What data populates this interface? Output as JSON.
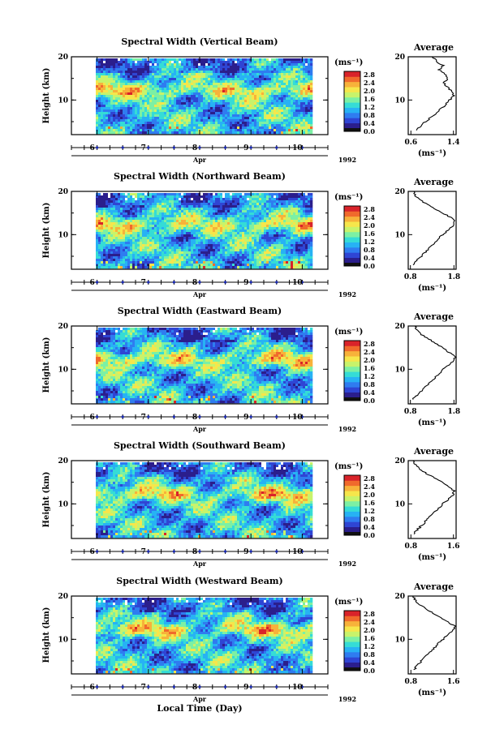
{
  "figure": {
    "xlabel": "Local Time (Day)",
    "month_label": "Apr",
    "year_label": "1992",
    "ylabel": "Height (km)",
    "unit_label": "(ms⁻¹)",
    "profile_title": "Average",
    "colors": {
      "colormap": [
        "#2b1e8c",
        "#2f45d4",
        "#2f7cf0",
        "#27b2f4",
        "#35dcd6",
        "#7cf0a4",
        "#c8f36b",
        "#f6e64b",
        "#f7b23a",
        "#f06a2c",
        "#d9232a"
      ],
      "gap": "#ffffff",
      "nav_marker": "#1c2bb4"
    }
  },
  "chart_data": [
    {
      "type": "heatmap",
      "title": "Spectral Width (Vertical Beam)",
      "x_ticks": [
        "6",
        "7",
        "8",
        "9",
        "10"
      ],
      "y_ticks": [
        "20",
        "10"
      ],
      "xlim": [
        5.5,
        10.5
      ],
      "ylim": [
        2,
        20
      ],
      "colorbar": {
        "ticks": [
          "2.8",
          "2.4",
          "2.0",
          "1.6",
          "1.2",
          "0.8",
          "0.4",
          "0.0"
        ],
        "range": [
          0.0,
          3.0
        ]
      },
      "profile": {
        "x_ticks": [
          "0.6",
          "1.4"
        ],
        "xlim": [
          0.55,
          1.45
        ],
        "heights": [
          3,
          4,
          5,
          6,
          7,
          8,
          9,
          10,
          11,
          12,
          13,
          14,
          15,
          16,
          17,
          18,
          19,
          20
        ],
        "values": [
          0.68,
          0.78,
          0.88,
          0.98,
          1.08,
          1.17,
          1.26,
          1.33,
          1.4,
          1.36,
          1.28,
          1.22,
          1.3,
          1.24,
          1.14,
          1.2,
          1.08,
          1.0
        ]
      }
    },
    {
      "type": "heatmap",
      "title": "Spectral Width (Northward Beam)",
      "x_ticks": [
        "6",
        "7",
        "8",
        "9",
        "10"
      ],
      "y_ticks": [
        "20",
        "10"
      ],
      "xlim": [
        5.5,
        10.5
      ],
      "ylim": [
        2,
        20
      ],
      "colorbar": {
        "ticks": [
          "2.8",
          "2.4",
          "2.0",
          "1.6",
          "1.2",
          "0.8",
          "0.4",
          "0.0"
        ],
        "range": [
          0.0,
          3.0
        ]
      },
      "profile": {
        "x_ticks": [
          "0.8",
          "1.8"
        ],
        "xlim": [
          0.75,
          1.85
        ],
        "heights": [
          3,
          4,
          5,
          6,
          7,
          8,
          9,
          10,
          11,
          12,
          13,
          14,
          15,
          16,
          17,
          18,
          19,
          20
        ],
        "values": [
          0.85,
          0.95,
          1.05,
          1.15,
          1.24,
          1.34,
          1.44,
          1.54,
          1.66,
          1.78,
          1.82,
          1.72,
          1.55,
          1.35,
          1.18,
          1.02,
          0.92,
          0.88
        ]
      }
    },
    {
      "type": "heatmap",
      "title": "Spectral Width (Eastward Beam)",
      "x_ticks": [
        "6",
        "7",
        "8",
        "9",
        "10"
      ],
      "y_ticks": [
        "20",
        "10"
      ],
      "xlim": [
        5.5,
        10.5
      ],
      "ylim": [
        2,
        20
      ],
      "colorbar": {
        "ticks": [
          "2.8",
          "2.4",
          "2.0",
          "1.6",
          "1.2",
          "0.8",
          "0.4",
          "0.0"
        ],
        "range": [
          0.0,
          3.0
        ]
      },
      "profile": {
        "x_ticks": [
          "0.8",
          "1.8"
        ],
        "xlim": [
          0.75,
          1.85
        ],
        "heights": [
          3,
          4,
          5,
          6,
          7,
          8,
          9,
          10,
          11,
          12,
          13,
          14,
          15,
          16,
          17,
          18,
          19,
          20
        ],
        "values": [
          0.85,
          0.95,
          1.06,
          1.16,
          1.26,
          1.36,
          1.46,
          1.56,
          1.68,
          1.8,
          1.84,
          1.66,
          1.55,
          1.38,
          1.22,
          1.06,
          0.95,
          0.9
        ]
      }
    },
    {
      "type": "heatmap",
      "title": "Spectral Width (Southward Beam)",
      "x_ticks": [
        "6",
        "7",
        "8",
        "9",
        "10"
      ],
      "y_ticks": [
        "20",
        "10"
      ],
      "xlim": [
        5.5,
        10.5
      ],
      "ylim": [
        2,
        20
      ],
      "colorbar": {
        "ticks": [
          "2.8",
          "2.4",
          "2.0",
          "1.6",
          "1.2",
          "0.8",
          "0.4",
          "0.0"
        ],
        "range": [
          0.0,
          3.0
        ]
      },
      "profile": {
        "x_ticks": [
          "0.8",
          "1.6"
        ],
        "xlim": [
          0.75,
          1.65
        ],
        "heights": [
          3,
          4,
          5,
          6,
          7,
          8,
          9,
          10,
          11,
          12,
          13,
          14,
          15,
          16,
          17,
          18,
          19,
          20
        ],
        "values": [
          0.85,
          0.92,
          1.0,
          1.08,
          1.16,
          1.24,
          1.32,
          1.4,
          1.5,
          1.58,
          1.62,
          1.5,
          1.38,
          1.24,
          1.1,
          0.98,
          0.88,
          0.84
        ]
      }
    },
    {
      "type": "heatmap",
      "title": "Spectral Width (Westward Beam)",
      "x_ticks": [
        "6",
        "7",
        "8",
        "9",
        "10"
      ],
      "y_ticks": [
        "20",
        "10"
      ],
      "xlim": [
        5.5,
        10.5
      ],
      "ylim": [
        2,
        20
      ],
      "colorbar": {
        "ticks": [
          "2.8",
          "2.4",
          "2.0",
          "1.6",
          "1.2",
          "0.8",
          "0.4",
          "0.0"
        ],
        "range": [
          0.0,
          3.0
        ]
      },
      "profile": {
        "x_ticks": [
          "0.8",
          "1.6"
        ],
        "xlim": [
          0.75,
          1.65
        ],
        "heights": [
          3,
          4,
          5,
          6,
          7,
          8,
          9,
          10,
          11,
          12,
          13,
          14,
          15,
          16,
          17,
          18,
          19,
          20
        ],
        "values": [
          0.86,
          0.92,
          1.0,
          1.08,
          1.16,
          1.24,
          1.32,
          1.4,
          1.5,
          1.58,
          1.63,
          1.5,
          1.36,
          1.22,
          1.08,
          0.96,
          0.88,
          0.84
        ]
      }
    }
  ]
}
